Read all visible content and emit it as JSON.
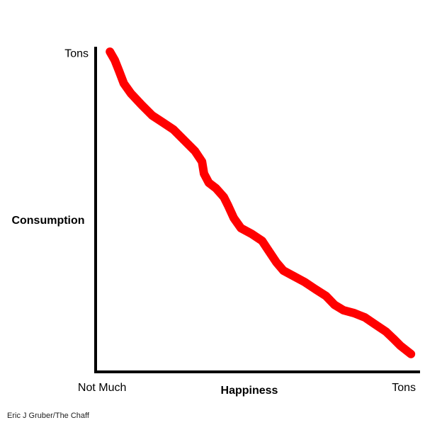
{
  "chart_data": {
    "type": "line",
    "x_label": "Happiness",
    "y_label": "Consumption",
    "credit": "Eric J Gruber/The Chaff",
    "xlim": [
      0,
      100
    ],
    "ylim": [
      0,
      100
    ],
    "xticks": [
      {
        "value": 2,
        "label": "Not Much"
      },
      {
        "value": 95,
        "label": "Tons"
      }
    ],
    "yticks": [
      {
        "value": 98,
        "label": "Tons"
      }
    ],
    "grid": false,
    "series": [
      {
        "color": "#ff0000",
        "x": [
          4.4,
          5.9,
          7.2,
          8.7,
          10.9,
          14.2,
          17.5,
          20.7,
          24.0,
          27.3,
          30.6,
          32.8,
          33.4,
          34.9,
          37.1,
          39.5,
          40.8,
          42.6,
          44.8,
          48.0,
          51.3,
          53.5,
          55.7,
          57.9,
          61.1,
          64.4,
          67.7,
          71.0,
          73.6,
          76.4,
          79.7,
          83.0,
          86.2,
          89.5,
          91.7,
          93.9,
          97.2
        ],
        "values": [
          98.7,
          96.1,
          92.8,
          88.9,
          85.8,
          82.3,
          79.0,
          76.9,
          74.7,
          71.4,
          68.1,
          64.8,
          61.1,
          58.3,
          56.6,
          53.9,
          51.3,
          47.4,
          44.3,
          42.6,
          40.4,
          37.1,
          33.8,
          31.2,
          29.5,
          27.7,
          25.5,
          23.4,
          20.7,
          19.0,
          18.1,
          16.8,
          14.6,
          12.4,
          10.3,
          8.1,
          5.5
        ]
      }
    ]
  }
}
